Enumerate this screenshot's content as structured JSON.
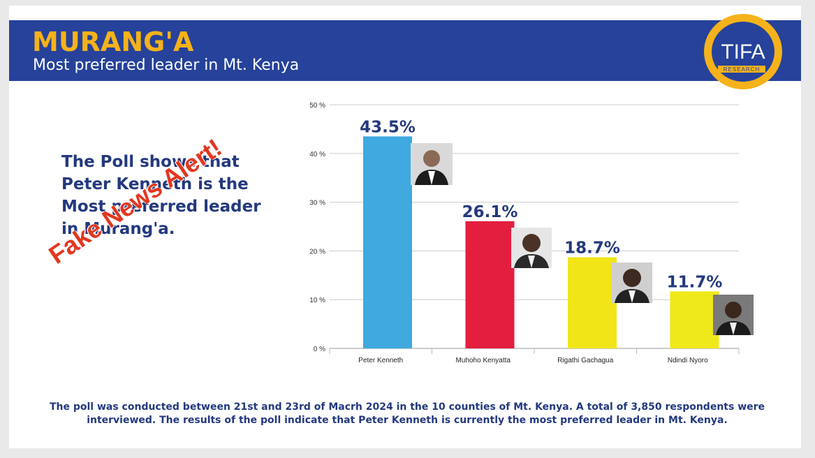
{
  "header": {
    "title": "MURANG'A",
    "subtitle": "Most preferred leader in Mt. Kenya",
    "logo_text": "TIFA",
    "logo_subtext": "RESEARCH"
  },
  "left_text": "The Poll shows that Peter Kenneth is the Most preferred leader in Murang'a.",
  "stamp_text": "Fake News Alert!",
  "footer_text": "The poll was conducted between 21st and 23rd of Macrh 2024 in the 10 counties of Mt. Kenya. A total of 3,850 respondents were interviewed. The results of the poll indicate that Peter Kenneth is currently the most preferred leader in Mt. Kenya.",
  "colors": {
    "header_bg": "#26429a",
    "title": "#f5b21a",
    "text": "#23397e",
    "stamp": "#e2371f"
  },
  "chart_data": {
    "type": "bar",
    "categories": [
      "Peter Kenneth",
      "Muhoho Kenyatta",
      "Rigathi Gachagua",
      "Ndindi Nyoro"
    ],
    "values": [
      43.5,
      26.1,
      18.7,
      11.7
    ],
    "data_labels": [
      "43.5%",
      "26.1%",
      "18.7%",
      "11.7%"
    ],
    "bar_colors": [
      "#3fa9e0",
      "#e31e3f",
      "#f2e517",
      "#efe81a"
    ],
    "yticks": [
      "0 %",
      "10 %",
      "20 %",
      "30 %",
      "40 %",
      "50 %"
    ],
    "ylim": [
      0,
      50
    ],
    "grid": true,
    "title": "",
    "xlabel": "",
    "ylabel": ""
  }
}
